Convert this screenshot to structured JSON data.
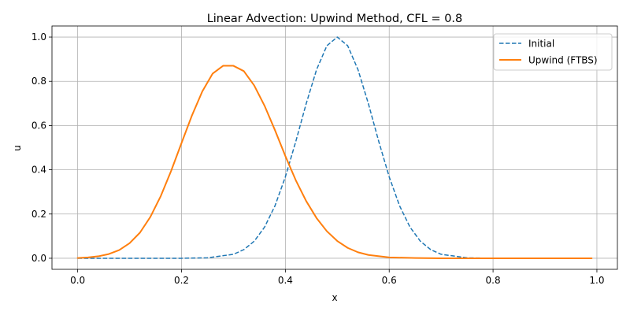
{
  "chart_data": {
    "type": "line",
    "title": "Linear Advection: Upwind Method, CFL = 0.8",
    "xlabel": "x",
    "ylabel": "u",
    "xlim": [
      -0.0495,
      1.0395
    ],
    "ylim": [
      -0.05,
      1.05
    ],
    "xticks": [
      0.0,
      0.2,
      0.4,
      0.6,
      0.8,
      1.0
    ],
    "xtick_labels": [
      "0.0",
      "0.2",
      "0.4",
      "0.6",
      "0.8",
      "1.0"
    ],
    "yticks": [
      0.0,
      0.2,
      0.4,
      0.6,
      0.8,
      1.0
    ],
    "ytick_labels": [
      "0.0",
      "0.2",
      "0.4",
      "0.6",
      "0.8",
      "1.0"
    ],
    "grid": true,
    "legend_position": "top-right",
    "series": [
      {
        "name": "Initial",
        "style": "dashed",
        "color": "#1f77b4",
        "x": [
          0.0,
          0.05,
          0.1,
          0.15,
          0.2,
          0.25,
          0.3,
          0.32,
          0.34,
          0.36,
          0.38,
          0.4,
          0.42,
          0.44,
          0.46,
          0.48,
          0.5,
          0.52,
          0.54,
          0.56,
          0.58,
          0.6,
          0.62,
          0.64,
          0.66,
          0.68,
          0.7,
          0.75,
          0.8,
          0.9,
          0.99
        ],
        "y": [
          0.0,
          0.0,
          0.0,
          0.0,
          0.0,
          0.002,
          0.018,
          0.039,
          0.077,
          0.141,
          0.237,
          0.368,
          0.527,
          0.698,
          0.852,
          0.961,
          1.0,
          0.961,
          0.852,
          0.698,
          0.527,
          0.368,
          0.237,
          0.141,
          0.077,
          0.039,
          0.018,
          0.002,
          0.0,
          0.0,
          0.0
        ]
      },
      {
        "name": "Upwind (FTBS)",
        "style": "solid",
        "color": "#ff7f0e",
        "x": [
          0.0,
          0.02,
          0.04,
          0.06,
          0.08,
          0.1,
          0.12,
          0.14,
          0.16,
          0.18,
          0.2,
          0.22,
          0.24,
          0.26,
          0.28,
          0.3,
          0.32,
          0.34,
          0.36,
          0.38,
          0.4,
          0.42,
          0.44,
          0.46,
          0.48,
          0.5,
          0.52,
          0.54,
          0.56,
          0.6,
          0.65,
          0.7,
          0.8,
          0.9,
          0.99
        ],
        "y": [
          0.001,
          0.004,
          0.009,
          0.019,
          0.037,
          0.068,
          0.116,
          0.187,
          0.281,
          0.395,
          0.521,
          0.645,
          0.754,
          0.835,
          0.87,
          0.87,
          0.846,
          0.781,
          0.689,
          0.579,
          0.462,
          0.353,
          0.259,
          0.182,
          0.122,
          0.078,
          0.047,
          0.027,
          0.015,
          0.004,
          0.001,
          0.0,
          0.0,
          0.0,
          0.0
        ]
      }
    ]
  }
}
